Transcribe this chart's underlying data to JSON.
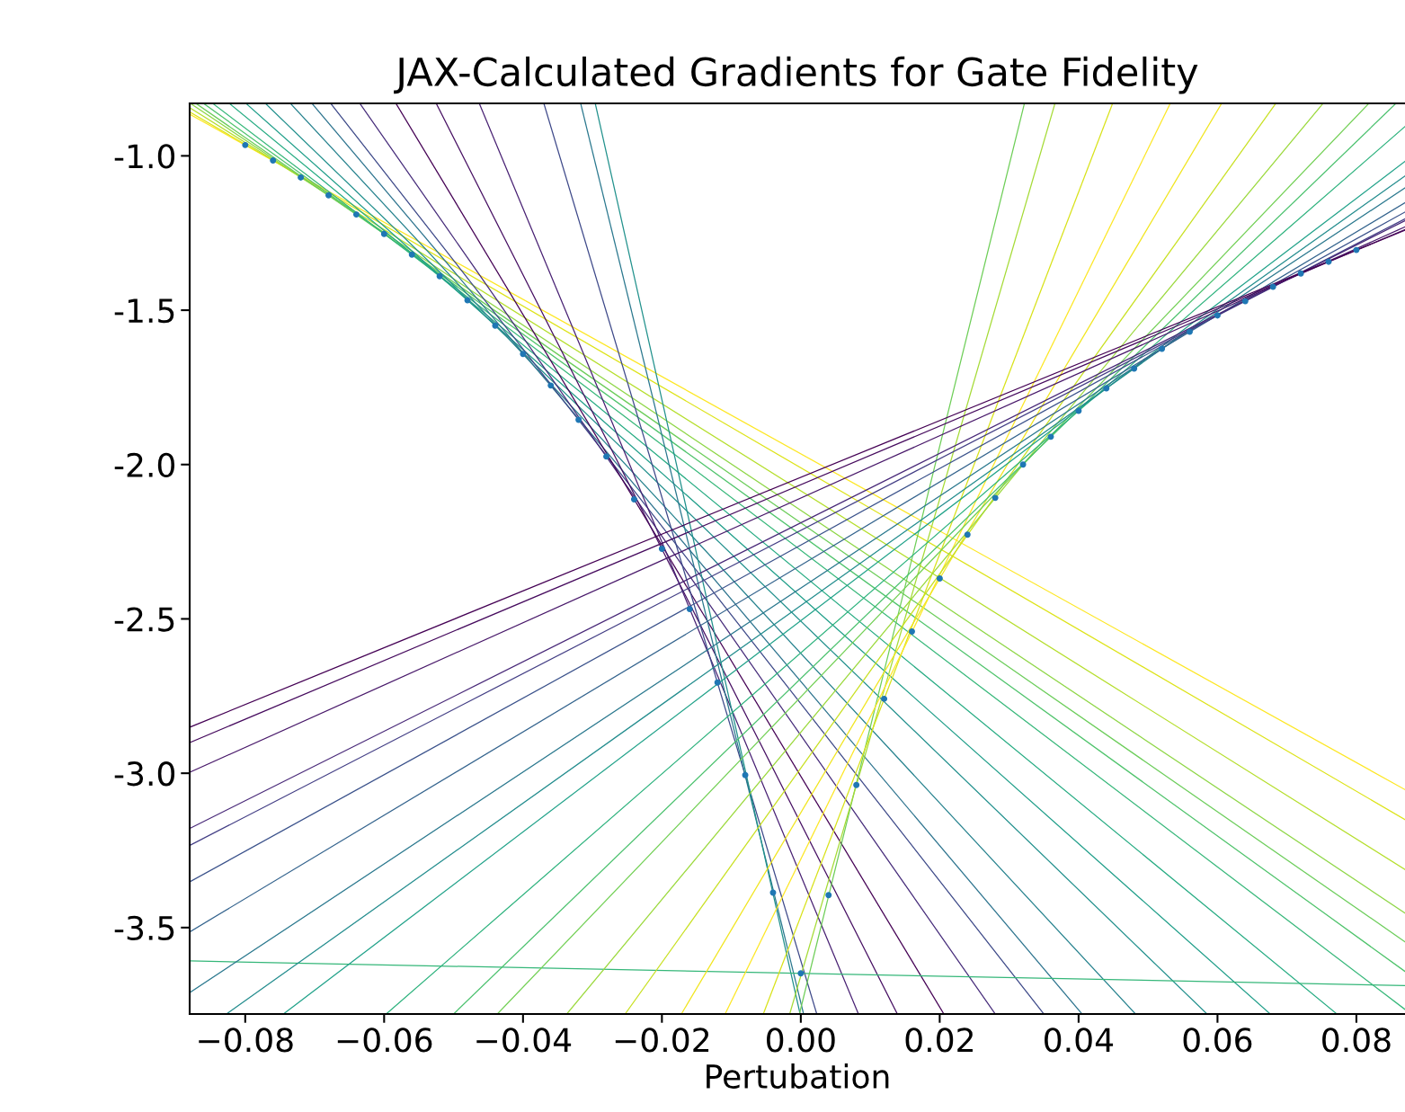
{
  "chart_data": {
    "type": "line",
    "title": "JAX-Calculated Gradients for Gate Fidelity",
    "xlabel": "Pertubation",
    "xlim": [
      -0.088,
      0.087
    ],
    "ylim": [
      -3.78,
      -0.83
    ],
    "xticks": [
      {
        "value": -0.08,
        "label": "−0.08"
      },
      {
        "value": -0.06,
        "label": "−0.06"
      },
      {
        "value": -0.04,
        "label": "−0.04"
      },
      {
        "value": -0.02,
        "label": "−0.02"
      },
      {
        "value": 0.0,
        "label": "0.00"
      },
      {
        "value": 0.02,
        "label": "0.02"
      },
      {
        "value": 0.04,
        "label": "0.04"
      },
      {
        "value": 0.06,
        "label": "0.06"
      },
      {
        "value": 0.08,
        "label": "0.08"
      }
    ],
    "yticks": [
      {
        "value": -1.0,
        "label": "-1.0"
      },
      {
        "value": -1.5,
        "label": "-1.5"
      },
      {
        "value": -2.0,
        "label": "-2.0"
      },
      {
        "value": -2.5,
        "label": "-2.5"
      },
      {
        "value": -3.0,
        "label": "-3.0"
      },
      {
        "value": -3.5,
        "label": "-3.5"
      }
    ],
    "grid": false,
    "line_style": "solid",
    "series": [
      {
        "type": "line",
        "color": "#fde725",
        "x": [
          -0.088,
          0.087
        ],
        "values": [
          -0.865,
          -3.053
        ]
      },
      {
        "type": "line",
        "color": "#dde318",
        "x": [
          -0.088,
          0.087
        ],
        "values": [
          -0.858,
          -3.15
        ]
      },
      {
        "type": "line",
        "color": "#b5de2b",
        "x": [
          -0.088,
          0.087
        ],
        "values": [
          -0.844,
          -3.312
        ]
      },
      {
        "type": "line",
        "color": "#8ed645",
        "x": [
          -0.0879,
          0.087
        ],
        "values": [
          -0.83,
          -3.453
        ]
      },
      {
        "type": "line",
        "color": "#6ccd5a",
        "x": [
          -0.0871,
          0.087
        ],
        "values": [
          -0.83,
          -3.546
        ]
      },
      {
        "type": "line",
        "color": "#4ec36b",
        "x": [
          -0.086,
          0.087
        ],
        "values": [
          -0.83,
          -3.642
        ]
      },
      {
        "type": "line",
        "color": "#35b779",
        "x": [
          -0.0847,
          0.087
        ],
        "values": [
          -0.83,
          -3.765
        ]
      },
      {
        "type": "line",
        "color": "#25ab82",
        "x": [
          -0.0823,
          0.0772
        ],
        "values": [
          -0.83,
          -3.78
        ]
      },
      {
        "type": "line",
        "color": "#1f9e89",
        "x": [
          -0.0799,
          0.0676
        ],
        "values": [
          -0.83,
          -3.78
        ]
      },
      {
        "type": "line",
        "color": "#22908d",
        "x": [
          -0.0771,
          0.0585
        ],
        "values": [
          -0.83,
          -3.78
        ]
      },
      {
        "type": "line",
        "color": "#26828e",
        "x": [
          -0.0735,
          0.0482
        ],
        "values": [
          -0.83,
          -3.78
        ]
      },
      {
        "type": "line",
        "color": "#2c738e",
        "x": [
          -0.0704,
          0.0405
        ],
        "values": [
          -0.83,
          -3.78
        ]
      },
      {
        "type": "line",
        "color": "#3e4a89",
        "x": [
          -0.0677,
          0.035
        ],
        "values": [
          -0.83,
          -3.78
        ]
      },
      {
        "type": "line",
        "color": "#472d7b",
        "x": [
          -0.0635,
          0.028
        ],
        "values": [
          -0.83,
          -3.78
        ]
      },
      {
        "type": "line",
        "color": "#440154",
        "x": [
          -0.0583,
          0.0206
        ],
        "values": [
          -0.83,
          -3.78
        ]
      },
      {
        "type": "line",
        "color": "#471063",
        "x": [
          -0.0525,
          0.0139
        ],
        "values": [
          -0.83,
          -3.78
        ]
      },
      {
        "type": "line",
        "color": "#482173",
        "x": [
          -0.0463,
          0.0083
        ],
        "values": [
          -0.83,
          -3.78
        ]
      },
      {
        "type": "line",
        "color": "#3e4989",
        "x": [
          -0.037,
          0.0023
        ],
        "values": [
          -0.83,
          -3.78
        ]
      },
      {
        "type": "line",
        "color": "#2a788e",
        "x": [
          -0.0317,
          0.0004
        ],
        "values": [
          -0.83,
          -3.78
        ]
      },
      {
        "type": "line",
        "color": "#21918c",
        "x": [
          -0.0296,
          -0.0001
        ],
        "values": [
          -0.83,
          -3.78
        ]
      },
      {
        "type": "line",
        "color": "#35b779",
        "x": [
          -0.088,
          0.087
        ],
        "values": [
          -3.608,
          -3.688
        ]
      },
      {
        "type": "line",
        "color": "#6ece58",
        "x": [
          -0.0002,
          0.0322
        ],
        "values": [
          -3.78,
          -0.83
        ]
      },
      {
        "type": "line",
        "color": "#a5db36",
        "x": [
          -0.0016,
          0.0366
        ],
        "values": [
          -3.78,
          -0.83
        ]
      },
      {
        "type": "line",
        "color": "#d8e219",
        "x": [
          -0.0054,
          0.0449
        ],
        "values": [
          -3.78,
          -0.83
        ]
      },
      {
        "type": "line",
        "color": "#fde725",
        "x": [
          -0.0109,
          0.0532
        ],
        "values": [
          -3.78,
          -0.83
        ]
      },
      {
        "type": "line",
        "color": "#f1e51d",
        "x": [
          -0.0172,
          0.0606
        ],
        "values": [
          -3.78,
          -0.83
        ]
      },
      {
        "type": "line",
        "color": "#c8e020",
        "x": [
          -0.0253,
          0.0684
        ],
        "values": [
          -3.78,
          -0.83
        ]
      },
      {
        "type": "line",
        "color": "#9bd93c",
        "x": [
          -0.0337,
          0.0752
        ],
        "values": [
          -3.78,
          -0.83
        ]
      },
      {
        "type": "line",
        "color": "#73d056",
        "x": [
          -0.0437,
          0.0818
        ],
        "values": [
          -3.78,
          -0.83
        ]
      },
      {
        "type": "line",
        "color": "#4ac16d",
        "x": [
          -0.05,
          0.0857
        ],
        "values": [
          -3.78,
          -0.83
        ]
      },
      {
        "type": "line",
        "color": "#2db27d",
        "x": [
          -0.0597,
          0.087
        ],
        "values": [
          -3.78,
          -0.905
        ]
      },
      {
        "type": "line",
        "color": "#1fa188",
        "x": [
          -0.0745,
          0.087
        ],
        "values": [
          -3.78,
          -1.018
        ]
      },
      {
        "type": "line",
        "color": "#228c8d",
        "x": [
          -0.0827,
          0.087
        ],
        "values": [
          -3.78,
          -1.065
        ]
      },
      {
        "type": "line",
        "color": "#2a788e",
        "x": [
          -0.088,
          0.087
        ],
        "values": [
          -3.711,
          -1.104
        ]
      },
      {
        "type": "line",
        "color": "#33638d",
        "x": [
          -0.088,
          0.087
        ],
        "values": [
          -3.514,
          -1.152
        ]
      },
      {
        "type": "line",
        "color": "#3b528b",
        "x": [
          -0.088,
          0.087
        ],
        "values": [
          -3.352,
          -1.182
        ]
      },
      {
        "type": "line",
        "color": "#433e85",
        "x": [
          -0.088,
          0.087
        ],
        "values": [
          -3.234,
          -1.204
        ]
      },
      {
        "type": "line",
        "color": "#482878",
        "x": [
          -0.088,
          0.087
        ],
        "values": [
          -3.179,
          -1.21
        ]
      },
      {
        "type": "line",
        "color": "#48186a",
        "x": [
          -0.088,
          0.087
        ],
        "values": [
          -2.997,
          -1.23
        ]
      },
      {
        "type": "line",
        "color": "#460b5e",
        "x": [
          -0.088,
          0.087
        ],
        "values": [
          -2.901,
          -1.239
        ]
      },
      {
        "type": "line",
        "color": "#440154",
        "x": [
          -0.088,
          0.087
        ],
        "values": [
          -2.851,
          -1.241
        ]
      },
      {
        "type": "scatter",
        "color": "#1f77b4",
        "marker": "circle",
        "x": [
          -0.08,
          -0.076,
          -0.072,
          -0.068,
          -0.064,
          -0.06,
          -0.056,
          -0.052,
          -0.048,
          -0.044,
          -0.04,
          -0.036,
          -0.032,
          -0.028,
          -0.024,
          -0.02,
          -0.016,
          -0.012,
          -0.008,
          -0.004,
          0.0,
          0.004,
          0.008,
          0.012,
          0.016,
          0.02,
          0.024,
          0.028,
          0.032,
          0.036,
          0.04,
          0.044,
          0.048,
          0.052,
          0.056,
          0.06,
          0.064,
          0.068,
          0.072,
          0.076,
          0.08
        ],
        "values": [
          -0.965,
          -1.015,
          -1.07,
          -1.128,
          -1.19,
          -1.253,
          -1.32,
          -1.39,
          -1.468,
          -1.55,
          -1.642,
          -1.744,
          -1.855,
          -1.974,
          -2.113,
          -2.273,
          -2.468,
          -2.706,
          -3.006,
          -3.387,
          -3.648,
          -3.395,
          -3.038,
          -2.759,
          -2.541,
          -2.369,
          -2.227,
          -2.108,
          -2.0,
          -1.91,
          -1.826,
          -1.753,
          -1.689,
          -1.625,
          -1.57,
          -1.517,
          -1.471,
          -1.424,
          -1.381,
          -1.343,
          -1.305
        ]
      }
    ]
  }
}
